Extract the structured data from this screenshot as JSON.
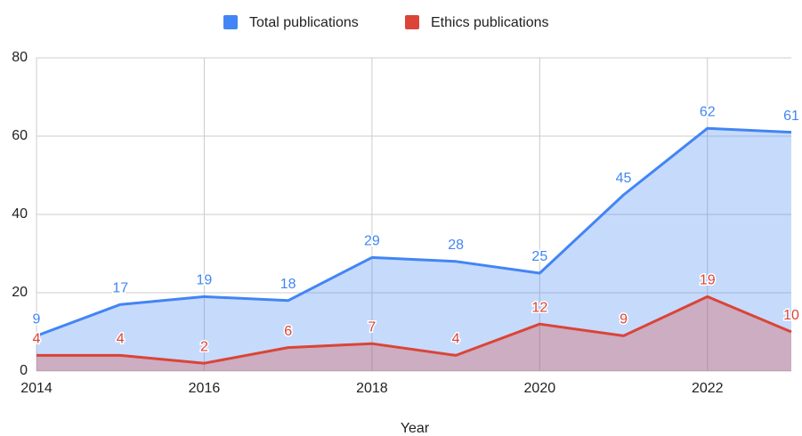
{
  "chart_data": {
    "type": "area",
    "x_label": "Year",
    "x": [
      2014,
      2015,
      2016,
      2017,
      2018,
      2019,
      2020,
      2021,
      2022,
      2023
    ],
    "series": [
      {
        "name": "Total publications",
        "color": "#4285f4",
        "values": [
          9,
          17,
          19,
          18,
          29,
          28,
          25,
          45,
          62,
          61
        ]
      },
      {
        "name": "Ethics publications",
        "color": "#db4437",
        "values": [
          4,
          4,
          2,
          6,
          7,
          4,
          12,
          9,
          19,
          10
        ]
      }
    ],
    "xlim": [
      2014,
      2023
    ],
    "xticks": [
      2014,
      2016,
      2018,
      2020,
      2022
    ],
    "ylim": [
      0,
      80
    ],
    "yticks": [
      0,
      20,
      40,
      60,
      80
    ],
    "grid": true,
    "legend": "top"
  }
}
